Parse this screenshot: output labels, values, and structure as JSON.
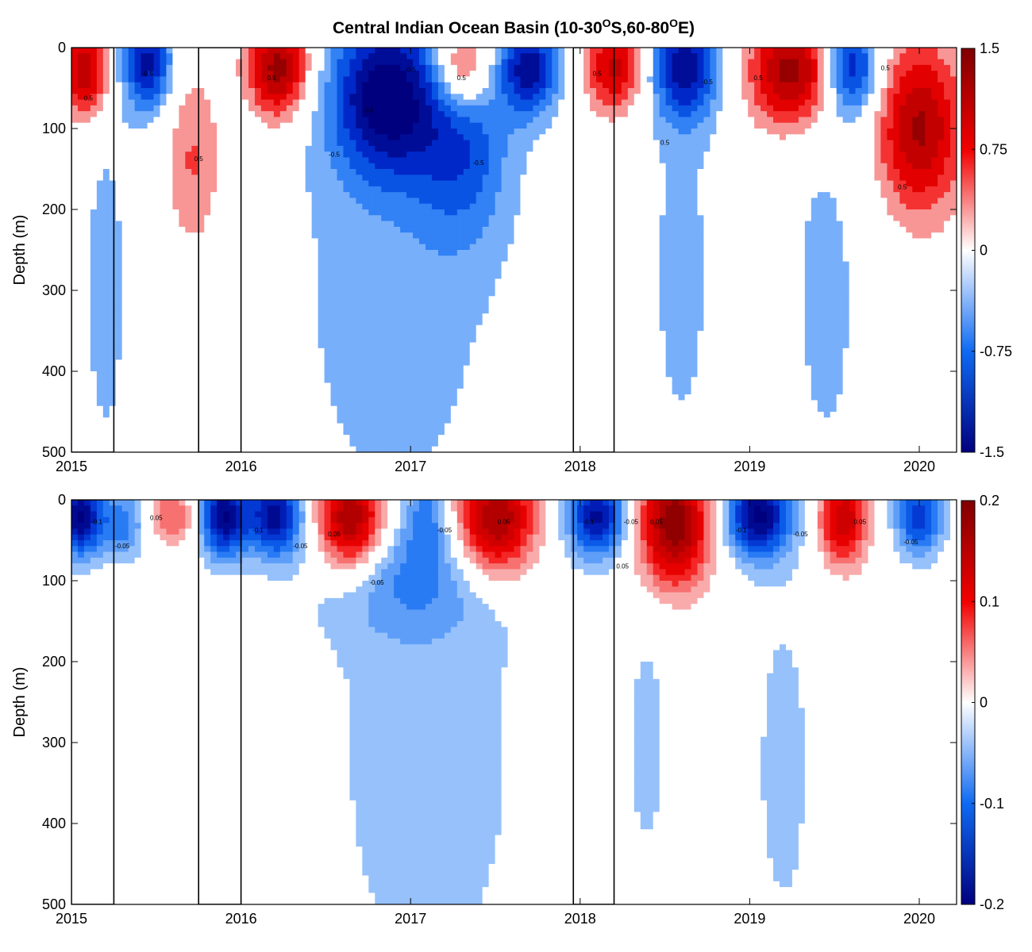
{
  "title": {
    "prefix": "Central Indian Ocean Basin (10-30",
    "sup1": "O",
    "mid": "S,60-80",
    "sup2": "O",
    "suffix": "E)"
  },
  "chart_data": [
    {
      "type": "heatmap",
      "name": "top-panel",
      "ylabel": "Depth (m)",
      "xlim": [
        2015.0,
        2020.22
      ],
      "ylim": [
        0,
        500
      ],
      "x_ticks": [
        2015,
        2016,
        2017,
        2018,
        2019,
        2020
      ],
      "x_tick_labels": [
        "2015",
        "2016",
        "2017",
        "2018",
        "2019",
        "2020"
      ],
      "y_ticks": [
        0,
        100,
        200,
        300,
        400,
        500
      ],
      "y_tick_labels": [
        "0",
        "100",
        "200",
        "300",
        "400",
        "500"
      ],
      "colorbar": {
        "min": -1.5,
        "max": 1.5,
        "ticks": [
          1.5,
          0.75,
          0,
          -0.75,
          -1.5
        ],
        "tick_labels": [
          "1.5",
          "0.75",
          "0",
          "-0.75",
          "-1.5"
        ]
      },
      "contour_interval": 0.25,
      "highlight_periods": [
        [
          2015.0,
          2015.25
        ],
        [
          2015.75,
          2016.0
        ],
        [
          2017.96,
          2018.2
        ]
      ],
      "anomalies": [
        {
          "x": 2015.08,
          "depth": 30,
          "amp": 1.3,
          "sx": 0.1,
          "sy": 40
        },
        {
          "x": 2015.45,
          "depth": 20,
          "amp": -1.3,
          "sx": 0.1,
          "sy": 40
        },
        {
          "x": 2015.72,
          "depth": 140,
          "amp": 0.55,
          "sx": 0.12,
          "sy": 80
        },
        {
          "x": 2016.22,
          "depth": 25,
          "amp": 1.45,
          "sx": 0.13,
          "sy": 45
        },
        {
          "x": 2016.85,
          "depth": 60,
          "amp": -1.5,
          "sx": 0.22,
          "sy": 70
        },
        {
          "x": 2017.3,
          "depth": 110,
          "amp": -0.8,
          "sx": 0.2,
          "sy": 90
        },
        {
          "x": 2017.3,
          "depth": 25,
          "amp": 1.2,
          "sx": 0.13,
          "sy": 40
        },
        {
          "x": 2017.7,
          "depth": 25,
          "amp": -1.3,
          "sx": 0.12,
          "sy": 40
        },
        {
          "x": 2018.2,
          "depth": 25,
          "amp": 1.1,
          "sx": 0.12,
          "sy": 40
        },
        {
          "x": 2018.62,
          "depth": 25,
          "amp": -1.3,
          "sx": 0.13,
          "sy": 45
        },
        {
          "x": 2019.25,
          "depth": 30,
          "amp": 1.45,
          "sx": 0.18,
          "sy": 50
        },
        {
          "x": 2019.6,
          "depth": 25,
          "amp": -1.2,
          "sx": 0.11,
          "sy": 40
        },
        {
          "x": 2020.0,
          "depth": 100,
          "amp": 1.3,
          "sx": 0.18,
          "sy": 75
        },
        {
          "x": 2016.9,
          "depth": 300,
          "amp": -0.35,
          "sx": 0.55,
          "sy": 280
        },
        {
          "x": 2018.6,
          "depth": 280,
          "amp": -0.3,
          "sx": 0.2,
          "sy": 250
        },
        {
          "x": 2019.45,
          "depth": 300,
          "amp": -0.3,
          "sx": 0.22,
          "sy": 260
        },
        {
          "x": 2015.2,
          "depth": 300,
          "amp": -0.3,
          "sx": 0.15,
          "sy": 250
        }
      ],
      "contour_labels": [
        {
          "x": 2015.1,
          "depth": 65,
          "text": "0.5"
        },
        {
          "x": 2015.45,
          "depth": 35,
          "text": "-0.5"
        },
        {
          "x": 2015.75,
          "depth": 140,
          "text": "0.5"
        },
        {
          "x": 2016.18,
          "depth": 40,
          "text": "0.5"
        },
        {
          "x": 2016.55,
          "depth": 135,
          "text": "-0.5"
        },
        {
          "x": 2016.75,
          "depth": 80,
          "text": "-0.5"
        },
        {
          "x": 2017.0,
          "depth": 30,
          "text": "-0.5"
        },
        {
          "x": 2017.3,
          "depth": 40,
          "text": "0.5"
        },
        {
          "x": 2017.4,
          "depth": 145,
          "text": "-0.5"
        },
        {
          "x": 2018.1,
          "depth": 35,
          "text": "0.5"
        },
        {
          "x": 2018.5,
          "depth": 120,
          "text": "0.5"
        },
        {
          "x": 2018.75,
          "depth": 45,
          "text": "-0.5"
        },
        {
          "x": 2019.05,
          "depth": 40,
          "text": "0.5"
        },
        {
          "x": 2019.8,
          "depth": 28,
          "text": "0.5"
        },
        {
          "x": 2019.9,
          "depth": 175,
          "text": "0.5"
        }
      ]
    },
    {
      "type": "heatmap",
      "name": "bottom-panel",
      "ylabel": "Depth (m)",
      "xlim": [
        2015.0,
        2020.22
      ],
      "ylim": [
        0,
        500
      ],
      "x_ticks": [
        2015,
        2016,
        2017,
        2018,
        2019,
        2020
      ],
      "x_tick_labels": [
        "2015",
        "2016",
        "2017",
        "2018",
        "2019",
        "2020"
      ],
      "y_ticks": [
        0,
        100,
        200,
        300,
        400,
        500
      ],
      "y_tick_labels": [
        "0",
        "100",
        "200",
        "300",
        "400",
        "500"
      ],
      "colorbar": {
        "min": -0.2,
        "max": 0.2,
        "ticks": [
          0.2,
          0.1,
          0,
          -0.1,
          -0.2
        ],
        "tick_labels": [
          "0.2",
          "0.1",
          "0",
          "-0.1",
          "-0.2"
        ]
      },
      "contour_interval": 0.025,
      "highlight_periods": [
        [
          2015.0,
          2015.25
        ],
        [
          2015.75,
          2016.0
        ],
        [
          2017.96,
          2018.2
        ]
      ],
      "anomalies": [
        {
          "x": 2015.05,
          "depth": 20,
          "amp": -0.2,
          "sx": 0.09,
          "sy": 35
        },
        {
          "x": 2015.3,
          "depth": 30,
          "amp": -0.09,
          "sx": 0.1,
          "sy": 30
        },
        {
          "x": 2015.6,
          "depth": 20,
          "amp": 0.08,
          "sx": 0.1,
          "sy": 25
        },
        {
          "x": 2015.9,
          "depth": 20,
          "amp": -0.2,
          "sx": 0.1,
          "sy": 35
        },
        {
          "x": 2016.2,
          "depth": 20,
          "amp": -0.18,
          "sx": 0.11,
          "sy": 35
        },
        {
          "x": 2016.65,
          "depth": 25,
          "amp": 0.2,
          "sx": 0.14,
          "sy": 45
        },
        {
          "x": 2017.0,
          "depth": 95,
          "amp": -0.06,
          "sx": 0.35,
          "sy": 55
        },
        {
          "x": 2017.1,
          "depth": 20,
          "amp": -0.06,
          "sx": 0.08,
          "sy": 40
        },
        {
          "x": 2017.5,
          "depth": 25,
          "amp": 0.2,
          "sx": 0.17,
          "sy": 50
        },
        {
          "x": 2018.1,
          "depth": 20,
          "amp": -0.18,
          "sx": 0.12,
          "sy": 35
        },
        {
          "x": 2018.55,
          "depth": 30,
          "amp": 0.2,
          "sx": 0.15,
          "sy": 55
        },
        {
          "x": 2019.05,
          "depth": 20,
          "amp": -0.2,
          "sx": 0.13,
          "sy": 35
        },
        {
          "x": 2019.55,
          "depth": 25,
          "amp": 0.15,
          "sx": 0.1,
          "sy": 40
        },
        {
          "x": 2020.0,
          "depth": 20,
          "amp": -0.14,
          "sx": 0.1,
          "sy": 35
        },
        {
          "x": 2017.1,
          "depth": 320,
          "amp": -0.035,
          "sx": 0.55,
          "sy": 300
        },
        {
          "x": 2018.4,
          "depth": 300,
          "amp": -0.03,
          "sx": 0.12,
          "sy": 150
        },
        {
          "x": 2019.2,
          "depth": 330,
          "amp": -0.03,
          "sx": 0.2,
          "sy": 250
        }
      ],
      "contour_labels": [
        {
          "x": 2015.15,
          "depth": 30,
          "text": "-0.1"
        },
        {
          "x": 2015.3,
          "depth": 60,
          "text": "-0.05"
        },
        {
          "x": 2015.5,
          "depth": 25,
          "text": "0.05"
        },
        {
          "x": 2016.1,
          "depth": 40,
          "text": "-0.1"
        },
        {
          "x": 2016.35,
          "depth": 60,
          "text": "-0.05"
        },
        {
          "x": 2016.55,
          "depth": 45,
          "text": "0.05"
        },
        {
          "x": 2016.8,
          "depth": 105,
          "text": "-0.05"
        },
        {
          "x": 2017.2,
          "depth": 40,
          "text": "-0.05"
        },
        {
          "x": 2017.55,
          "depth": 30,
          "text": "0.05"
        },
        {
          "x": 2018.05,
          "depth": 30,
          "text": "-0.1"
        },
        {
          "x": 2018.3,
          "depth": 30,
          "text": "-0.05"
        },
        {
          "x": 2018.25,
          "depth": 85,
          "text": "0.05"
        },
        {
          "x": 2018.45,
          "depth": 30,
          "text": "0.05"
        },
        {
          "x": 2018.95,
          "depth": 40,
          "text": "-0.1"
        },
        {
          "x": 2019.3,
          "depth": 45,
          "text": "-0.05"
        },
        {
          "x": 2019.65,
          "depth": 30,
          "text": "0.05"
        },
        {
          "x": 2019.95,
          "depth": 55,
          "text": "-0.05"
        }
      ]
    }
  ]
}
